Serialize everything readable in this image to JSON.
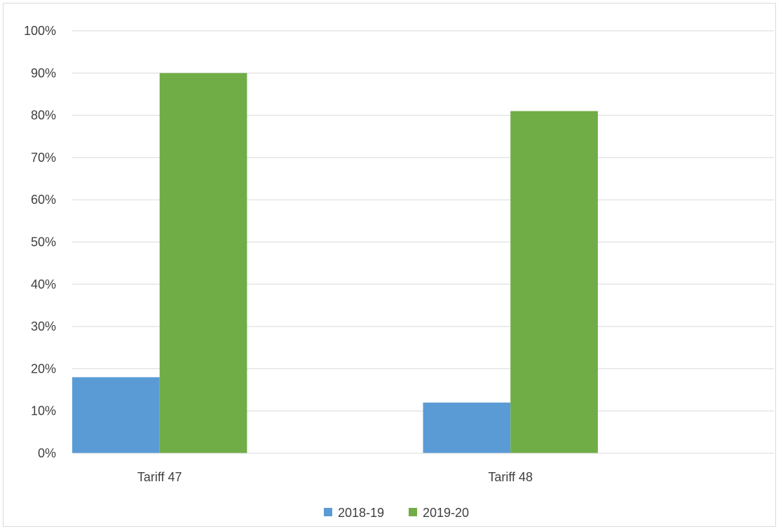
{
  "chart_data": {
    "type": "bar",
    "categories": [
      "Tariff 47",
      "Tariff 48"
    ],
    "series": [
      {
        "name": "2018-19",
        "values": [
          18,
          12
        ],
        "color": "#5b9bd5"
      },
      {
        "name": "2019-20",
        "values": [
          90,
          81
        ],
        "color": "#70ad47"
      }
    ],
    "ylim": [
      0,
      100
    ],
    "yticks": [
      0,
      10,
      20,
      30,
      40,
      50,
      60,
      70,
      80,
      90,
      100
    ],
    "ytick_labels": [
      "0%",
      "10%",
      "20%",
      "30%",
      "40%",
      "50%",
      "60%",
      "70%",
      "80%",
      "90%",
      "100%"
    ],
    "grid": true,
    "legend": "bottom",
    "title": "",
    "xlabel": "",
    "ylabel": ""
  }
}
